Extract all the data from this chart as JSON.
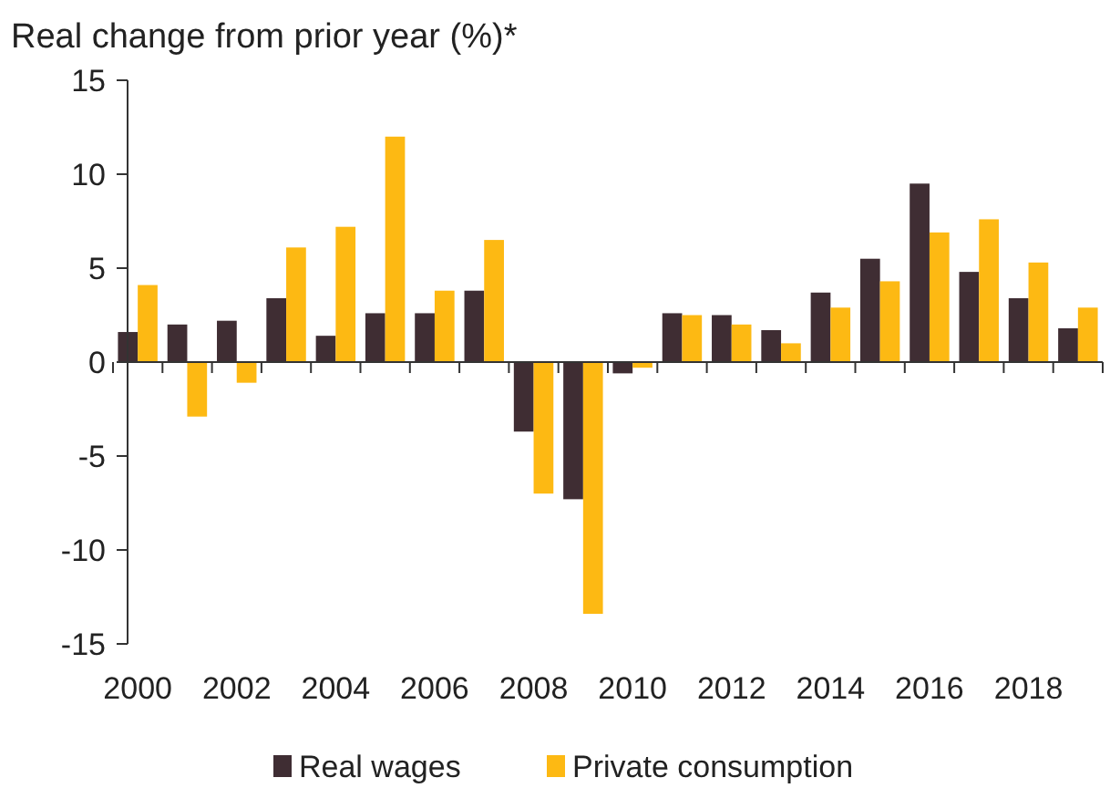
{
  "chart_data": {
    "type": "bar",
    "subtitle": "Real change from prior year (%)*",
    "categories": [
      "2000",
      null,
      "2002",
      null,
      "2004",
      null,
      "2006",
      null,
      "2008",
      null,
      "2010",
      null,
      "2012",
      null,
      "2014",
      null,
      "2016",
      null,
      "2018",
      null
    ],
    "series": [
      {
        "name": "Real wages",
        "color": "#3f2d33",
        "values": [
          1.6,
          2.0,
          2.2,
          3.4,
          1.4,
          2.6,
          2.6,
          3.8,
          -3.7,
          -7.3,
          -0.6,
          2.6,
          2.5,
          1.7,
          3.7,
          5.5,
          9.5,
          4.8,
          3.4,
          1.8
        ]
      },
      {
        "name": "Private consumption",
        "color": "#fdb913",
        "values": [
          4.1,
          -2.9,
          -1.1,
          6.1,
          7.2,
          12.0,
          3.8,
          6.5,
          -7.0,
          -13.4,
          -0.3,
          2.5,
          2.0,
          1.0,
          2.9,
          4.3,
          6.9,
          7.6,
          5.3,
          2.9
        ]
      }
    ],
    "ylim": [
      -15,
      15
    ],
    "yticks": [
      -15,
      -10,
      -5,
      0,
      5,
      10,
      15
    ],
    "legend": "bottom"
  }
}
